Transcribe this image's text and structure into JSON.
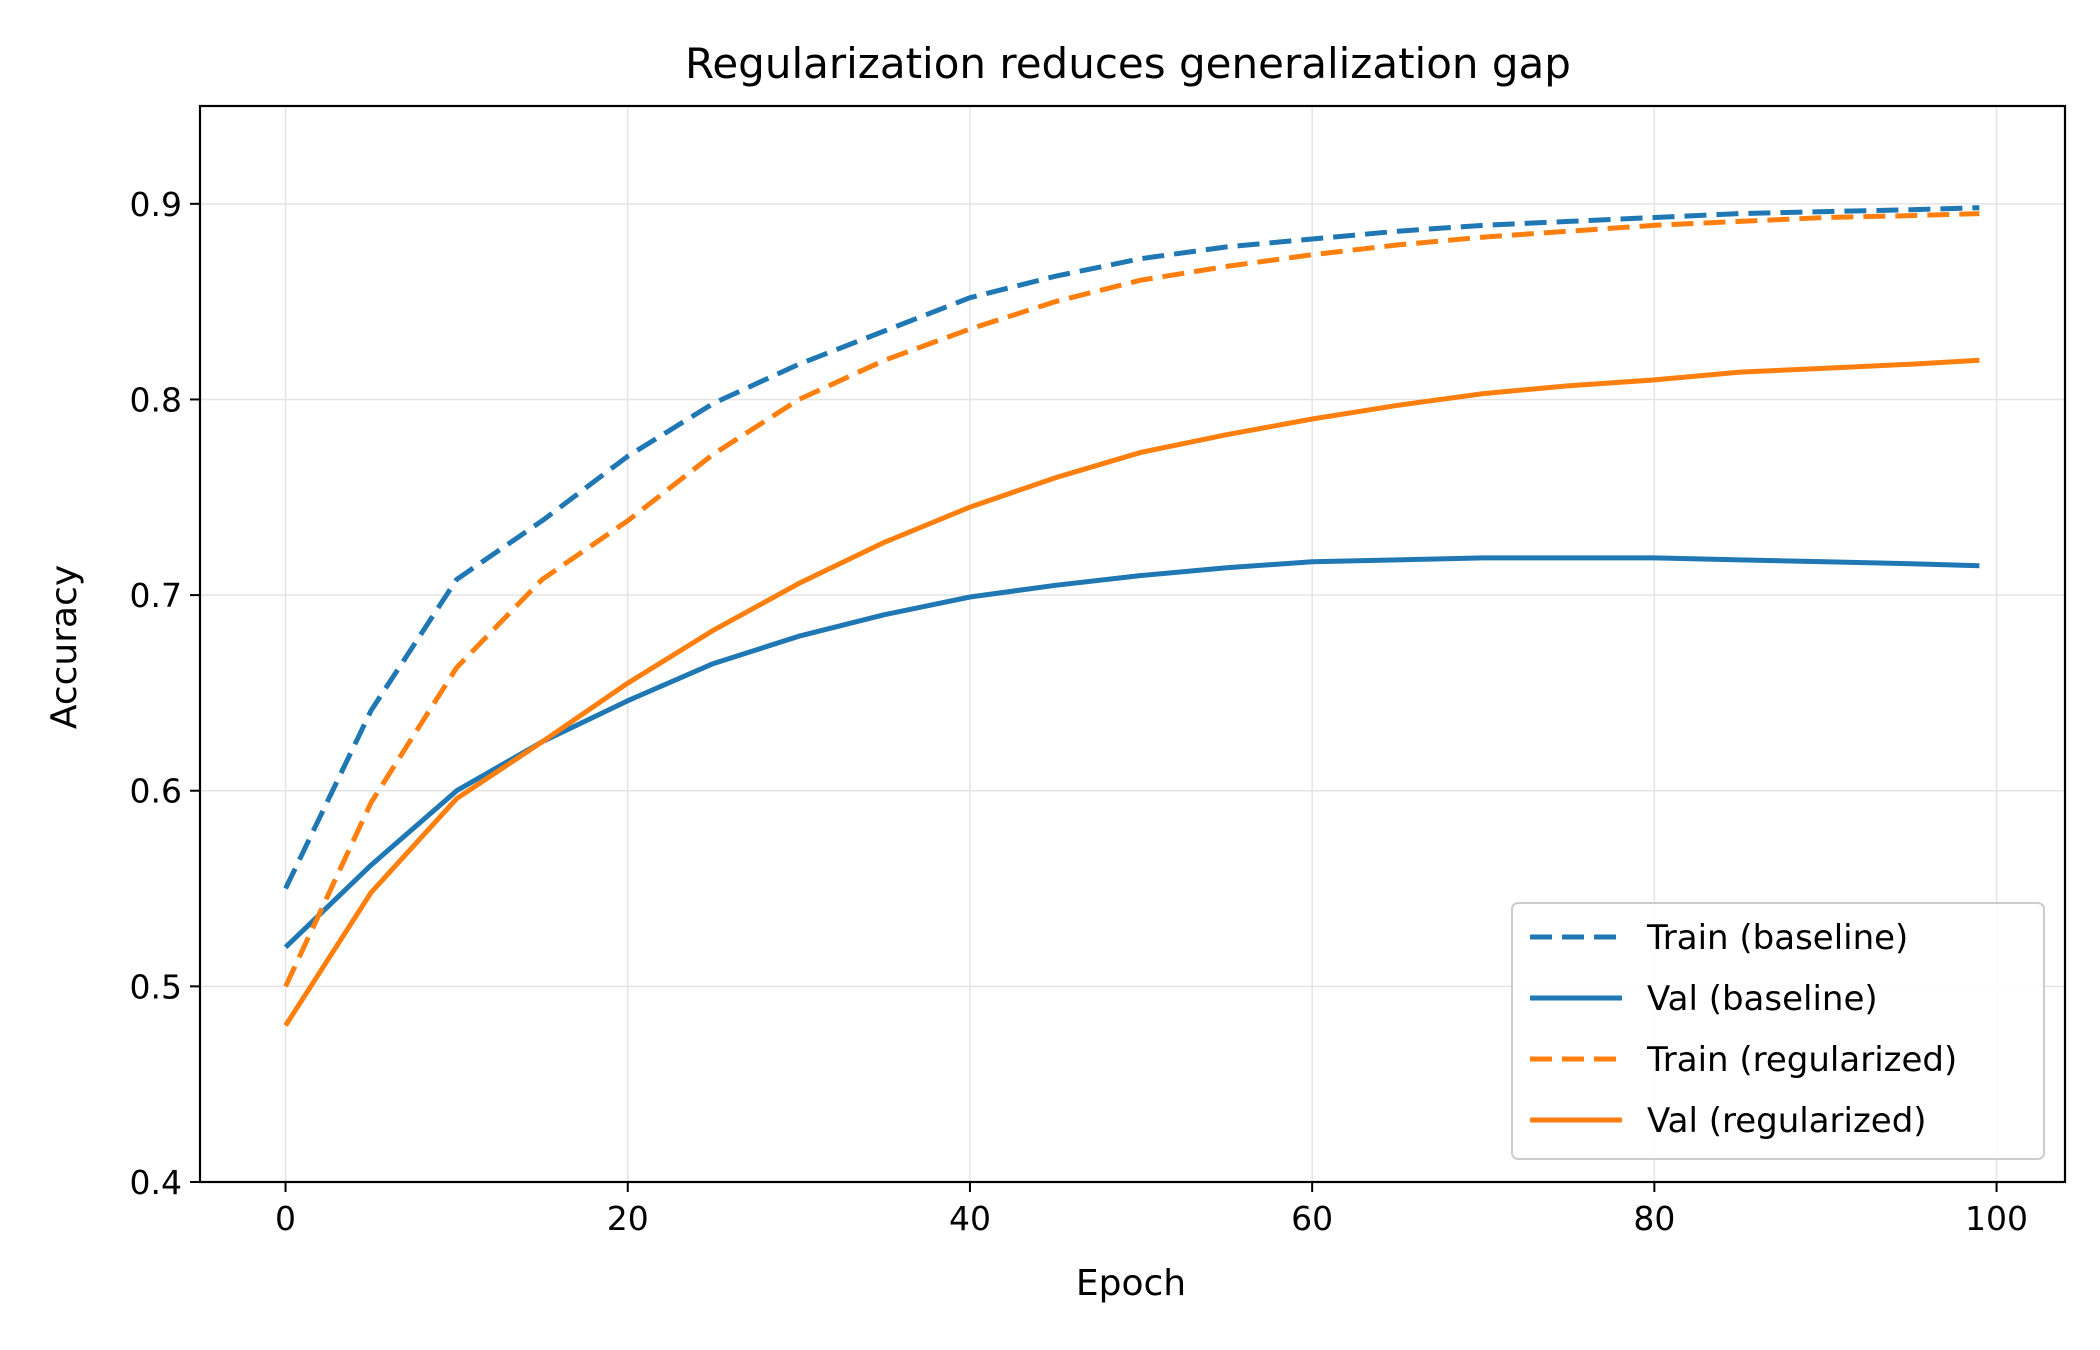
{
  "chart_data": {
    "type": "line",
    "title": "Regularization reduces generalization gap",
    "xlabel": "Epoch",
    "ylabel": "Accuracy",
    "xlim": [
      -5,
      104
    ],
    "ylim": [
      0.4,
      0.95
    ],
    "xticks": [
      0,
      20,
      40,
      60,
      80,
      100
    ],
    "yticks": [
      0.4,
      0.5,
      0.6,
      0.7,
      0.8,
      0.9
    ],
    "grid": true,
    "legend_position": "lower-right",
    "x": [
      0,
      5,
      10,
      15,
      20,
      25,
      30,
      35,
      40,
      45,
      50,
      55,
      60,
      65,
      70,
      75,
      80,
      85,
      90,
      95,
      99
    ],
    "series": [
      {
        "name": "Train (baseline)",
        "color": "#1f77b4",
        "dash": "dashed",
        "values": [
          0.55,
          0.641,
          0.708,
          0.738,
          0.771,
          0.798,
          0.818,
          0.835,
          0.852,
          0.863,
          0.872,
          0.878,
          0.882,
          0.886,
          0.889,
          0.891,
          0.893,
          0.895,
          0.896,
          0.897,
          0.898
        ]
      },
      {
        "name": "Val (baseline)",
        "color": "#1f77b4",
        "dash": "solid",
        "values": [
          0.52,
          0.562,
          0.6,
          0.625,
          0.646,
          0.665,
          0.679,
          0.69,
          0.699,
          0.705,
          0.71,
          0.714,
          0.717,
          0.718,
          0.719,
          0.719,
          0.719,
          0.718,
          0.717,
          0.716,
          0.715
        ]
      },
      {
        "name": "Train (regularized)",
        "color": "#ff7f0e",
        "dash": "dashed",
        "values": [
          0.5,
          0.594,
          0.663,
          0.708,
          0.738,
          0.772,
          0.8,
          0.82,
          0.836,
          0.85,
          0.861,
          0.868,
          0.874,
          0.879,
          0.883,
          0.886,
          0.889,
          0.891,
          0.893,
          0.894,
          0.895
        ]
      },
      {
        "name": "Val (regularized)",
        "color": "#ff7f0e",
        "dash": "solid",
        "values": [
          0.48,
          0.548,
          0.596,
          0.625,
          0.655,
          0.682,
          0.706,
          0.727,
          0.745,
          0.76,
          0.773,
          0.782,
          0.79,
          0.797,
          0.803,
          0.807,
          0.81,
          0.814,
          0.816,
          0.818,
          0.82
        ]
      }
    ]
  }
}
